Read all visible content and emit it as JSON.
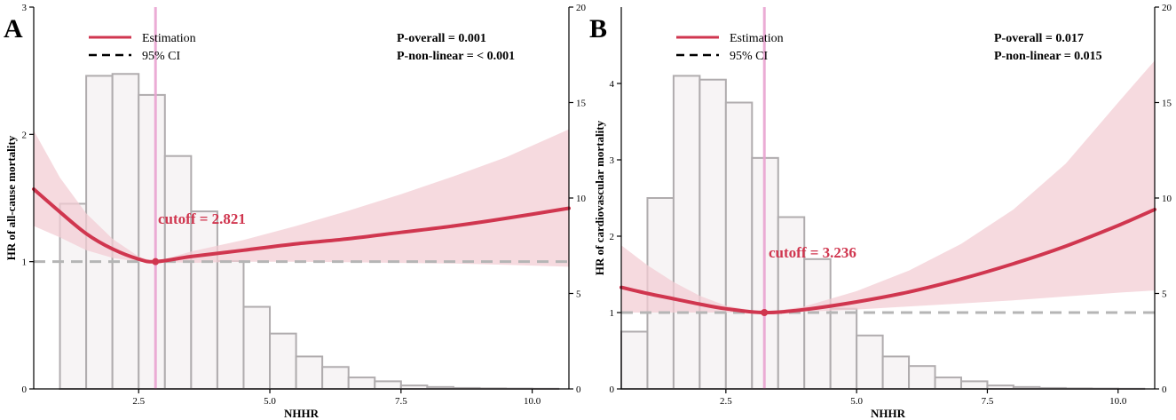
{
  "colors": {
    "curve": "#d0364f",
    "ci_band": "#f3cdd4",
    "hist_fill": "#f7f4f5",
    "hist_edge": "#b0acae",
    "reference": "#b5b5b5",
    "cutoff_line": "#e9a3d0"
  },
  "chart_data": [
    {
      "type": "line",
      "panel_label": "A",
      "xlabel": "NHHR",
      "ylabel": "HR of all-cause mortality",
      "xlim": [
        0.5,
        10.7
      ],
      "ylim": [
        0,
        3
      ],
      "y2lim": [
        0,
        20
      ],
      "x_ticks": [
        "2.5",
        "5.0",
        "7.5",
        "10.0"
      ],
      "y_ticks": [
        "0",
        "1",
        "2",
        "3"
      ],
      "y2_ticks": [
        "0",
        "5",
        "10",
        "15",
        "20"
      ],
      "legend": {
        "estimation": "Estimation",
        "ci": "95% CI"
      },
      "p_overall": "P-overall = 0.001",
      "p_nonlinear": "P-non-linear = < 0.001",
      "cutoff_label": "cutoff = 2.821",
      "cutoff_value": 2.821,
      "histogram": {
        "bin_edges": [
          1.0,
          1.5,
          2.0,
          2.5,
          3.0,
          3.5,
          4.0,
          4.5,
          5.0,
          5.5,
          6.0,
          6.5,
          7.0,
          7.5,
          8.0,
          8.5,
          9.0,
          9.5,
          10.0,
          10.5
        ],
        "counts": [
          9.7,
          16.4,
          16.5,
          15.4,
          12.2,
          9.3,
          6.7,
          4.3,
          2.9,
          1.7,
          1.15,
          0.6,
          0.4,
          0.18,
          0.1,
          0.05,
          0.03,
          0.02,
          0.01
        ]
      },
      "series": [
        {
          "name": "Estimation",
          "x": [
            0.5,
            1.0,
            1.5,
            2.0,
            2.5,
            2.821,
            3.5,
            4.5,
            5.5,
            6.5,
            7.5,
            8.5,
            9.5,
            10.7
          ],
          "y": [
            1.57,
            1.39,
            1.22,
            1.1,
            1.02,
            1.0,
            1.04,
            1.09,
            1.14,
            1.18,
            1.23,
            1.28,
            1.34,
            1.42
          ]
        },
        {
          "name": "95% CI lower",
          "x": [
            0.5,
            1.0,
            1.5,
            2.0,
            2.5,
            2.821,
            3.5,
            4.5,
            5.5,
            6.5,
            7.5,
            8.5,
            9.5,
            10.7
          ],
          "y": [
            1.28,
            1.19,
            1.09,
            1.03,
            1.0,
            1.0,
            0.99,
            1.0,
            1.0,
            0.995,
            0.99,
            0.985,
            0.975,
            0.96
          ]
        },
        {
          "name": "95% CI upper",
          "x": [
            0.5,
            1.0,
            1.5,
            2.0,
            2.5,
            2.821,
            3.5,
            4.5,
            5.5,
            6.5,
            7.5,
            8.5,
            9.5,
            10.7
          ],
          "y": [
            2.03,
            1.66,
            1.38,
            1.18,
            1.04,
            1.0,
            1.08,
            1.17,
            1.28,
            1.4,
            1.53,
            1.67,
            1.82,
            2.04
          ]
        }
      ],
      "reference_hr": 1
    },
    {
      "type": "line",
      "panel_label": "B",
      "xlabel": "NHHR",
      "ylabel": "HR of cardiovascular mortality",
      "xlim": [
        0.5,
        10.7
      ],
      "ylim": [
        0,
        5
      ],
      "y2lim": [
        0,
        20
      ],
      "x_ticks": [
        "2.5",
        "5.0",
        "7.5",
        "10.0"
      ],
      "y_ticks": [
        "0",
        "1",
        "2",
        "3",
        "4"
      ],
      "y2_ticks": [
        "0",
        "5",
        "10",
        "15",
        "20"
      ],
      "legend": {
        "estimation": "Estimation",
        "ci": "95% CI"
      },
      "p_overall": "P-overall = 0.017",
      "p_nonlinear": "P-non-linear = 0.015",
      "cutoff_label": "cutoff = 3.236",
      "cutoff_value": 3.236,
      "histogram": {
        "bin_edges": [
          0.5,
          1.0,
          1.5,
          2.0,
          2.5,
          3.0,
          3.5,
          4.0,
          4.5,
          5.0,
          5.5,
          6.0,
          6.5,
          7.0,
          7.5,
          8.0,
          8.5,
          9.0,
          9.5,
          10.0,
          10.5
        ],
        "counts": [
          3.0,
          10.0,
          16.4,
          16.2,
          15.0,
          12.1,
          9.0,
          6.8,
          4.2,
          2.8,
          1.7,
          1.2,
          0.6,
          0.4,
          0.18,
          0.1,
          0.05,
          0.03,
          0.02,
          0.01
        ]
      },
      "series": [
        {
          "name": "Estimation",
          "x": [
            0.5,
            1.0,
            1.5,
            2.0,
            2.5,
            3.236,
            4.0,
            5.0,
            6.0,
            7.0,
            8.0,
            9.0,
            10.0,
            10.7
          ],
          "y": [
            1.33,
            1.25,
            1.18,
            1.11,
            1.05,
            1.0,
            1.04,
            1.14,
            1.27,
            1.44,
            1.64,
            1.87,
            2.14,
            2.35
          ]
        },
        {
          "name": "95% CI lower",
          "x": [
            0.5,
            1.0,
            1.5,
            2.0,
            2.5,
            3.236,
            4.0,
            5.0,
            6.0,
            7.0,
            8.0,
            9.0,
            10.0,
            10.7
          ],
          "y": [
            1.0,
            1.0,
            1.0,
            1.0,
            1.0,
            1.0,
            1.01,
            1.04,
            1.08,
            1.12,
            1.16,
            1.21,
            1.26,
            1.29
          ]
        },
        {
          "name": "95% CI upper",
          "x": [
            0.5,
            1.0,
            1.5,
            2.0,
            2.5,
            3.236,
            4.0,
            5.0,
            6.0,
            7.0,
            8.0,
            9.0,
            10.0,
            10.7
          ],
          "y": [
            1.88,
            1.62,
            1.4,
            1.22,
            1.09,
            1.0,
            1.08,
            1.28,
            1.55,
            1.9,
            2.35,
            2.95,
            3.75,
            4.3
          ]
        }
      ],
      "reference_hr": 1
    }
  ]
}
